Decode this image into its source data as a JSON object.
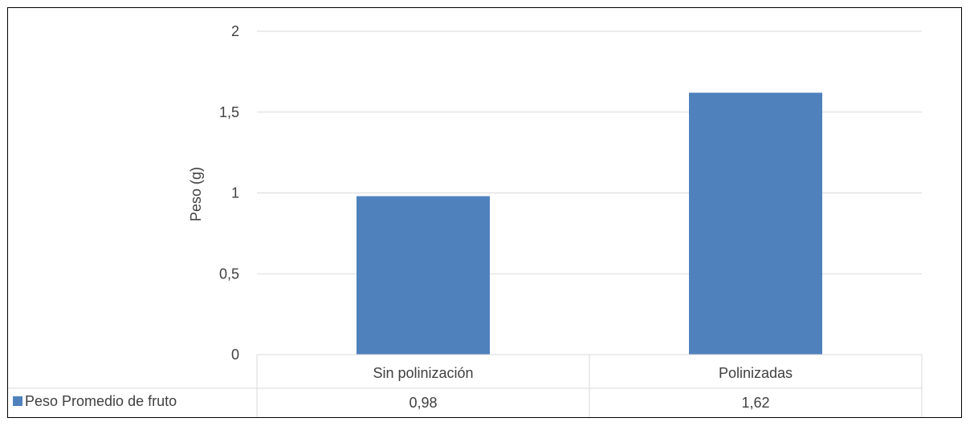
{
  "chart_data": {
    "type": "bar",
    "categories": [
      "Sin polinización",
      "Polinizadas"
    ],
    "series": [
      {
        "name": "Peso Promedio de fruto",
        "values": [
          0.98,
          1.62
        ],
        "value_labels": [
          "0,98",
          "1,62"
        ],
        "color": "#4F81BD"
      }
    ],
    "ylabel": "Peso (g)",
    "xlabel": "",
    "ylim": [
      0,
      2
    ],
    "yticks": [
      0,
      0.5,
      1,
      1.5,
      2
    ],
    "ytick_labels": [
      "0",
      "0,5",
      "1",
      "1,5",
      "2"
    ],
    "grid": true,
    "data_table": true,
    "colors": {
      "bar": "#4F81BD",
      "grid": "#D9D9D9",
      "text": "#404040",
      "border": "#000000"
    }
  }
}
